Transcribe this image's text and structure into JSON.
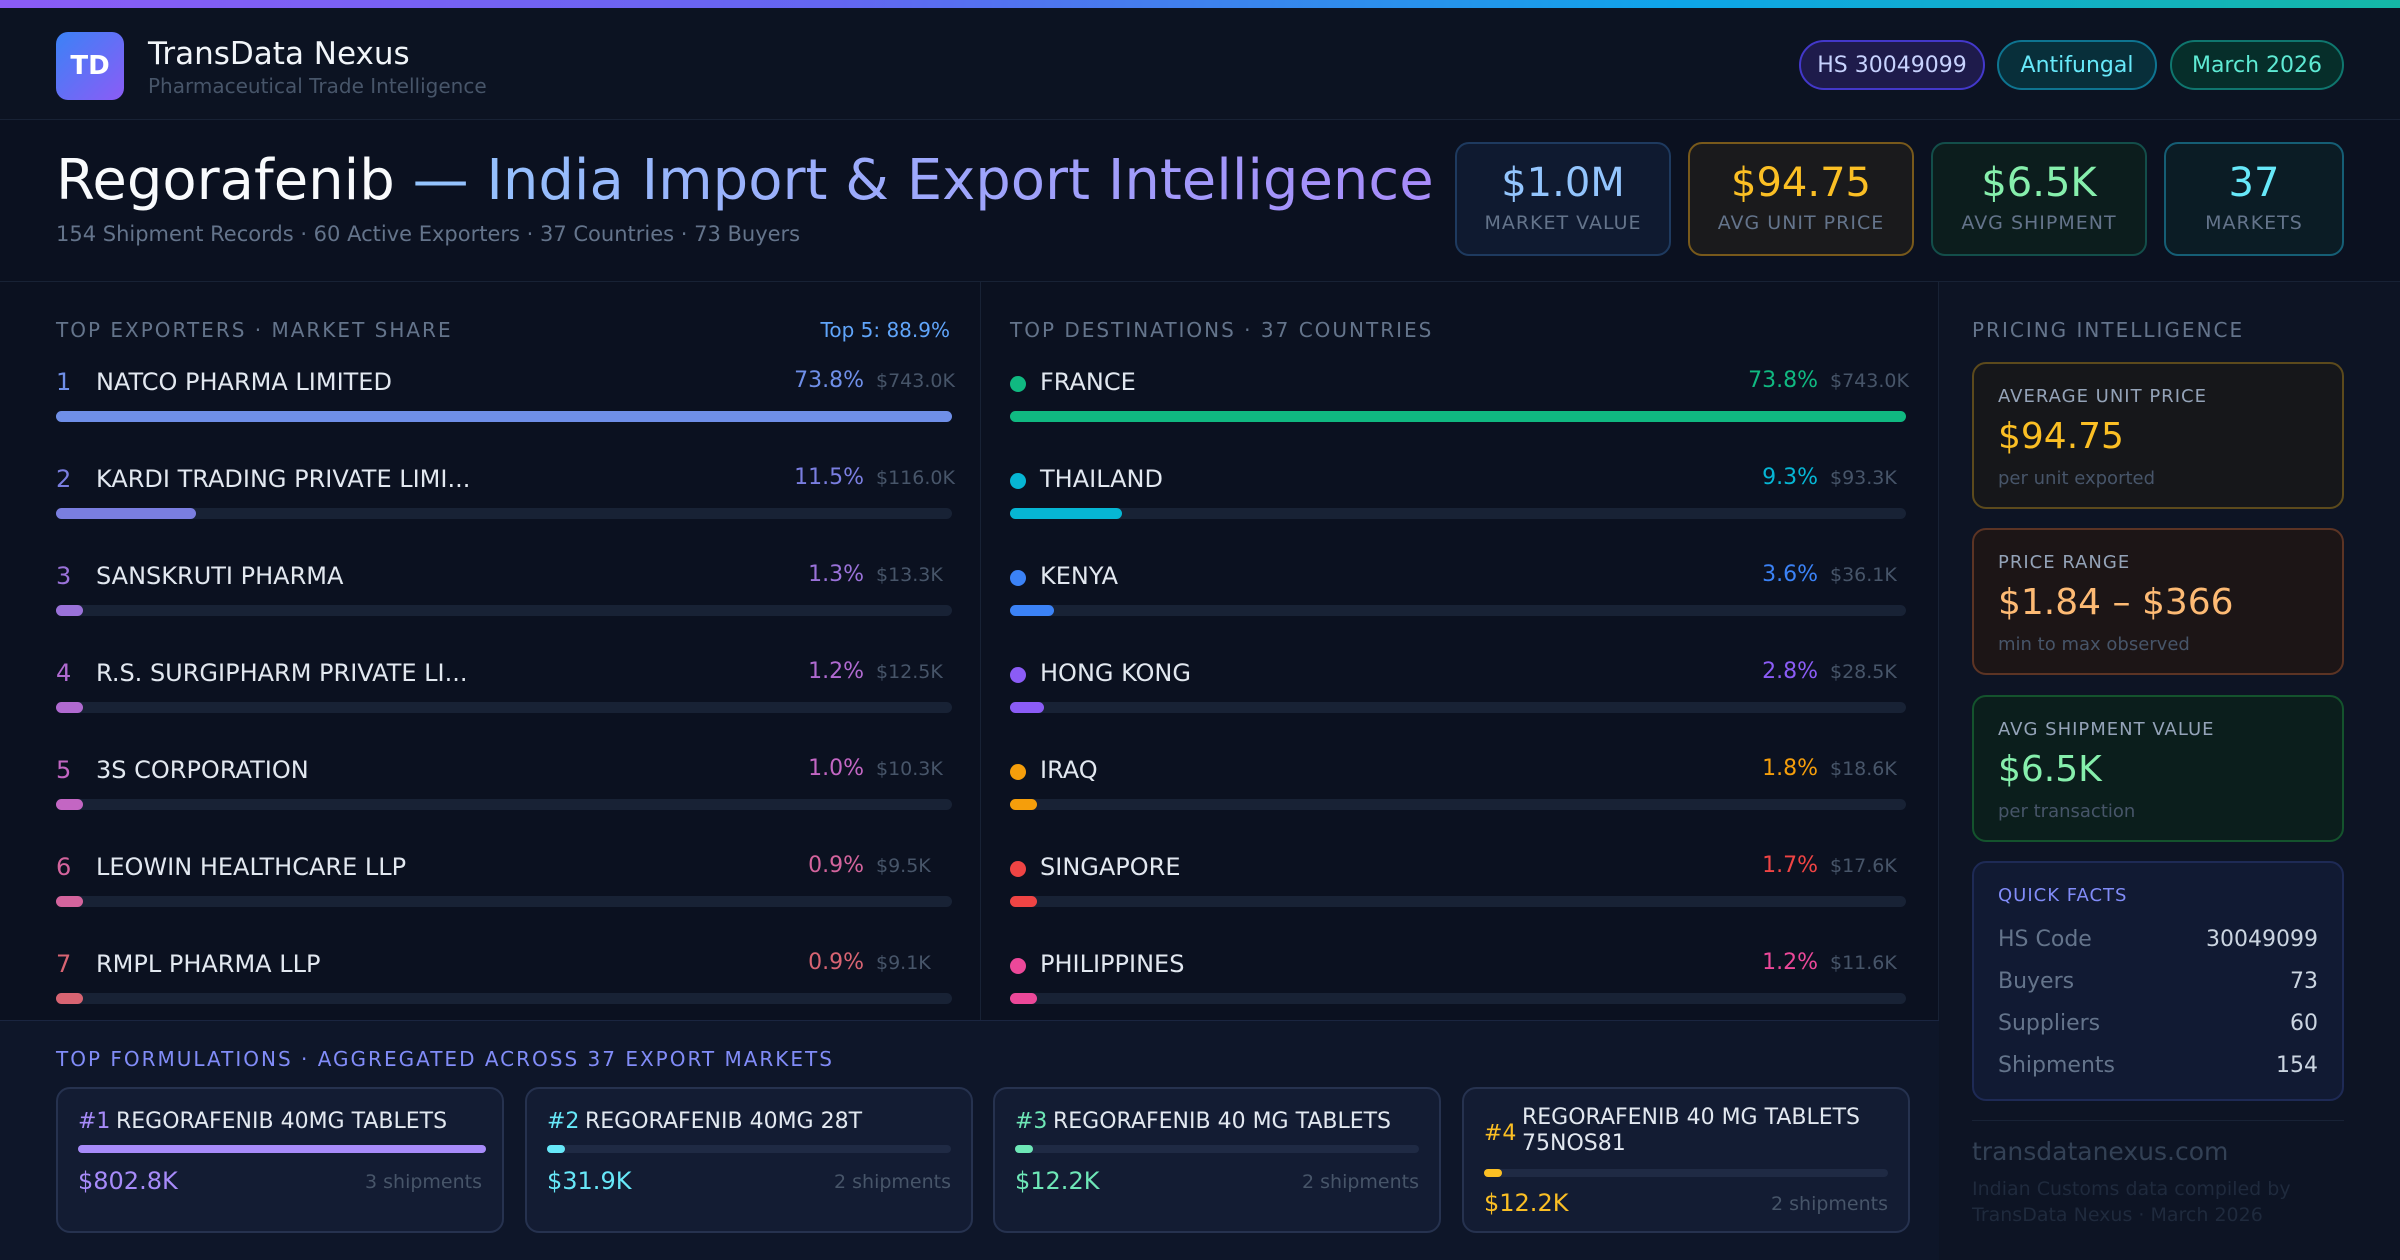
{
  "brand": {
    "logo_initials": "TD",
    "name": "TransData Nexus",
    "tagline": "Pharmaceutical Trade Intelligence"
  },
  "header_pills": {
    "hs": "HS 30049099",
    "category": "Antifungal",
    "date": "March 2026"
  },
  "hero": {
    "title_drug": "Regorafenib",
    "title_rest": " — India Import & Export Intelligence",
    "subtitle": "154 Shipment Records · 60 Active Exporters · 37 Countries · 73 Buyers"
  },
  "kpis": {
    "market_value": {
      "value": "$1.0M",
      "label": "MARKET VALUE"
    },
    "avg_unit_price": {
      "value": "$94.75",
      "label": "AVG UNIT PRICE"
    },
    "avg_shipment": {
      "value": "$6.5K",
      "label": "AVG SHIPMENT"
    },
    "markets": {
      "value": "37",
      "label": "MARKETS"
    }
  },
  "exporters": {
    "title": "TOP EXPORTERS · MARKET SHARE",
    "top5": "Top 5: 88.9%",
    "colors": [
      "#6f8fe8",
      "#7a7ee0",
      "#9a72d9",
      "#b06ad0",
      "#c366c3",
      "#d4649d",
      "#d86472"
    ],
    "rows": [
      {
        "rank": "1",
        "name": "NATCO PHARMA LIMITED",
        "pct": "73.8%",
        "amount": "$743.0K",
        "share": 100
      },
      {
        "rank": "2",
        "name": "KARDI TRADING PRIVATE LIMI...",
        "pct": "11.5%",
        "amount": "$116.0K",
        "share": 15.6
      },
      {
        "rank": "3",
        "name": "SANSKRUTI PHARMA",
        "pct": "1.3%",
        "amount": "$13.3K",
        "share": 3
      },
      {
        "rank": "4",
        "name": "R.S. SURGIPHARM PRIVATE LI...",
        "pct": "1.2%",
        "amount": "$12.5K",
        "share": 3
      },
      {
        "rank": "5",
        "name": "3S CORPORATION",
        "pct": "1.0%",
        "amount": "$10.3K",
        "share": 3
      },
      {
        "rank": "6",
        "name": "LEOWIN HEALTHCARE LLP",
        "pct": "0.9%",
        "amount": "$9.5K",
        "share": 3
      },
      {
        "rank": "7",
        "name": "RMPL PHARMA LLP",
        "pct": "0.9%",
        "amount": "$9.1K",
        "share": 3
      }
    ]
  },
  "destinations": {
    "title": "TOP DESTINATIONS · 37 COUNTRIES",
    "rows": [
      {
        "name": "FRANCE",
        "pct": "73.8%",
        "amount": "$743.0K",
        "share": 100,
        "color": "#10b981"
      },
      {
        "name": "THAILAND",
        "pct": "9.3%",
        "amount": "$93.3K",
        "share": 12.5,
        "color": "#06b6d4"
      },
      {
        "name": "KENYA",
        "pct": "3.6%",
        "amount": "$36.1K",
        "share": 4.9,
        "color": "#3b82f6"
      },
      {
        "name": "HONG KONG",
        "pct": "2.8%",
        "amount": "$28.5K",
        "share": 3.8,
        "color": "#8b5cf6"
      },
      {
        "name": "IRAQ",
        "pct": "1.8%",
        "amount": "$18.6K",
        "share": 3,
        "color": "#f59e0b"
      },
      {
        "name": "SINGAPORE",
        "pct": "1.7%",
        "amount": "$17.6K",
        "share": 3,
        "color": "#ef4444"
      },
      {
        "name": "PHILIPPINES",
        "pct": "1.2%",
        "amount": "$11.6K",
        "share": 3,
        "color": "#ec4899"
      }
    ]
  },
  "pricing": {
    "title": "PRICING INTELLIGENCE",
    "avg_unit": {
      "label": "AVERAGE UNIT PRICE",
      "value": "$94.75",
      "sub": "per unit exported"
    },
    "range": {
      "label": "PRICE RANGE",
      "value": "$1.84 – $366",
      "sub": "min to max observed"
    },
    "avg_shipment": {
      "label": "AVG SHIPMENT VALUE",
      "value": "$6.5K",
      "sub": "per transaction"
    }
  },
  "quick_facts": {
    "title": "QUICK FACTS",
    "rows": [
      {
        "label": "HS Code",
        "value": "30049099"
      },
      {
        "label": "Buyers",
        "value": "73"
      },
      {
        "label": "Suppliers",
        "value": "60"
      },
      {
        "label": "Shipments",
        "value": "154"
      }
    ]
  },
  "footer": {
    "site": "transdatanexus.com",
    "credit": "Indian Customs data compiled by TransData Nexus · March 2026"
  },
  "formulations": {
    "title": "TOP FORMULATIONS · AGGREGATED ACROSS 37 EXPORT MARKETS",
    "items": [
      {
        "num": "#1",
        "name": "REGORAFENIB 40MG TABLETS",
        "value": "$802.8K",
        "shipments": "3 shipments",
        "share": 100,
        "color": "#a78bfa"
      },
      {
        "num": "#2",
        "name": "REGORAFENIB 40MG 28T",
        "value": "$31.9K",
        "shipments": "2 shipments",
        "share": 4,
        "color": "#67e8f9"
      },
      {
        "num": "#3",
        "name": "REGORAFENIB 40 MG TABLETS",
        "value": "$12.2K",
        "shipments": "2 shipments",
        "share": 4,
        "color": "#6ee7b7"
      },
      {
        "num": "#4",
        "name": "REGORAFENIB 40 MG TABLETS 75NOS81",
        "value": "$12.2K",
        "shipments": "2 shipments",
        "share": 4,
        "color": "#fbbf24"
      }
    ]
  }
}
